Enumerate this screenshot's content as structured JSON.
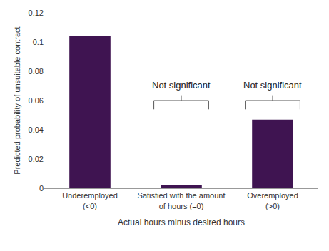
{
  "chart_data": {
    "type": "bar",
    "xlabel": "Actual hours minus desired hours",
    "ylabel": "Predicted probability of unsuitable contract",
    "categories": [
      "Underemployed\n(<0)",
      "Satisfied with the amount\nof hours (=0)",
      "Overemployed\n(>0)"
    ],
    "values": [
      0.104,
      0.002,
      0.047
    ],
    "color": "#3f1451",
    "ylim": [
      0,
      0.12
    ],
    "yticks": [
      0,
      0.02,
      0.04,
      0.06,
      0.08,
      0.1,
      0.12
    ],
    "grid": false,
    "annotations": [
      {
        "text": "Not significant",
        "category": "Satisfied with the amount\nof hours (=0)"
      },
      {
        "text": "Not significant",
        "category": "Overemployed\n(>0)"
      }
    ]
  }
}
